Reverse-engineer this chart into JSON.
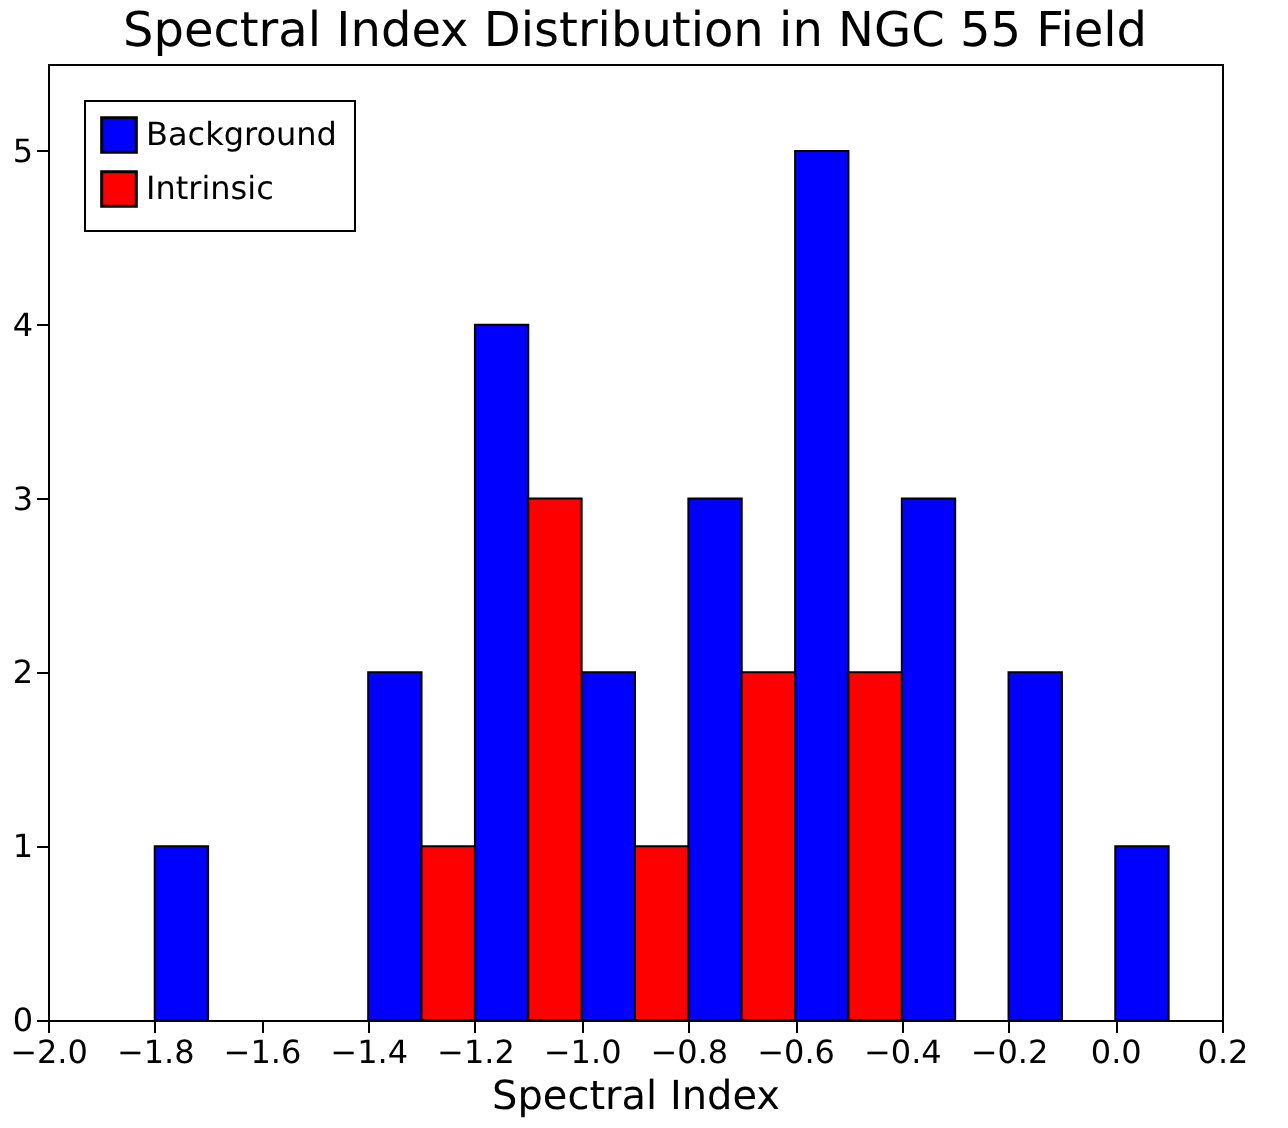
{
  "chart_data": {
    "type": "histogram",
    "title": "Spectral Index Distribution in NGC 55 Field",
    "xlabel": "Spectral Index",
    "bins": [
      -1.8,
      -1.6,
      -1.4,
      -1.2,
      -1.0,
      -0.8,
      -0.6,
      -0.4,
      -0.2,
      0.0,
      0.2
    ],
    "series": [
      {
        "name": "Background",
        "color": "#0000ff",
        "values": [
          1,
          0,
          2,
          4,
          2,
          3,
          5,
          3,
          2,
          1
        ]
      },
      {
        "name": "Intrinsic",
        "color": "#ff0000",
        "values": [
          0,
          0,
          1,
          3,
          1,
          2,
          2,
          0,
          0,
          0
        ]
      }
    ],
    "xlim": [
      -2.0,
      0.2
    ],
    "xticks": [
      {
        "value": -2.0,
        "label": "−2.0"
      },
      {
        "value": -1.8,
        "label": "−1.8"
      },
      {
        "value": -1.6,
        "label": "−1.6"
      },
      {
        "value": -1.4,
        "label": "−1.4"
      },
      {
        "value": -1.2,
        "label": "−1.2"
      },
      {
        "value": -1.0,
        "label": "−1.0"
      },
      {
        "value": -0.8,
        "label": "−0.8"
      },
      {
        "value": -0.6,
        "label": "−0.6"
      },
      {
        "value": -0.4,
        "label": "−0.4"
      },
      {
        "value": -0.2,
        "label": "−0.2"
      },
      {
        "value": 0.0,
        "label": "0.0"
      },
      {
        "value": 0.2,
        "label": "0.2"
      }
    ],
    "ylim": [
      0,
      5.5
    ],
    "yticks": [
      0,
      1,
      2,
      3,
      4,
      5
    ],
    "grid": false,
    "legend": "top left"
  }
}
